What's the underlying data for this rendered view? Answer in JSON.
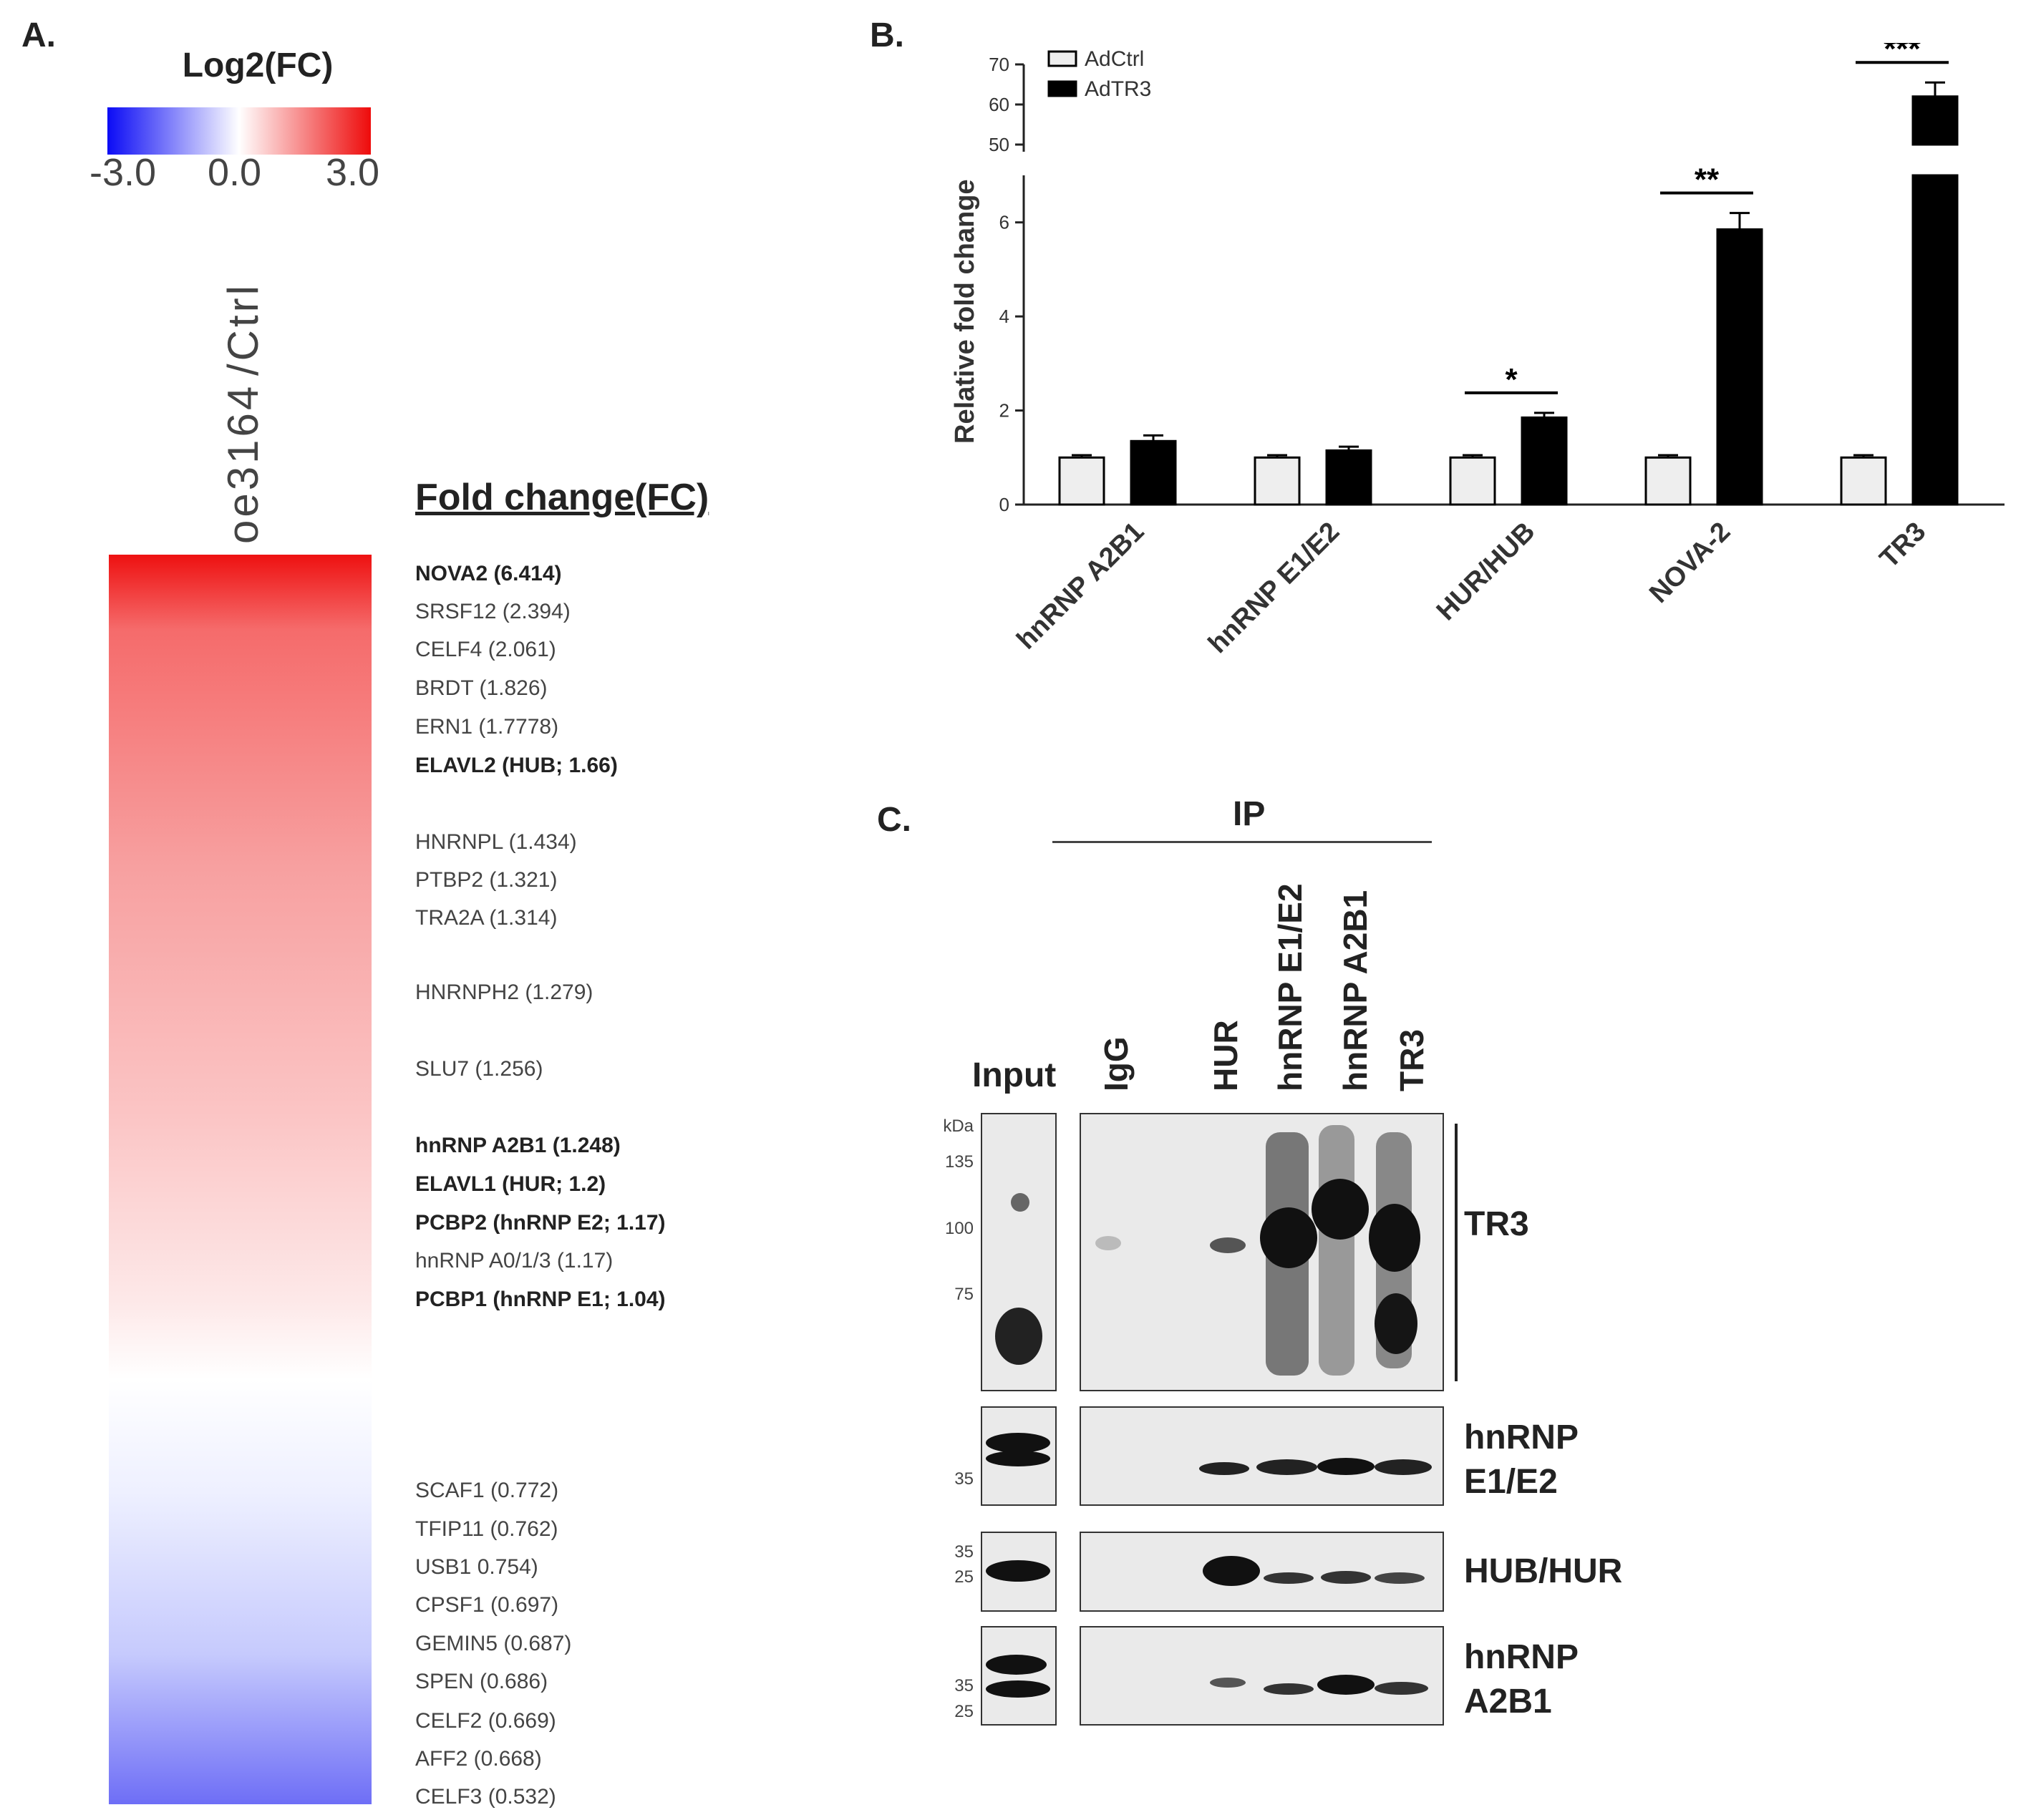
{
  "panel_a": {
    "label": "A.",
    "scale_title": "Log2(FC)",
    "scale_min": "-3.0",
    "scale_mid": "0.0",
    "scale_max": "3.0",
    "column_label_1": "oe3164",
    "column_label_2": "/Ctrl",
    "fc_header": "Fold change(FC)",
    "colors": {
      "low": "#2a2aff",
      "mid": "#ffffff",
      "high": "#ee1111"
    },
    "genes": [
      {
        "text": "NOVA2 (6.414)",
        "bold": true
      },
      {
        "text": "SRSF12 (2.394)",
        "bold": false
      },
      {
        "text": "CELF4 (2.061)",
        "bold": false
      },
      {
        "text": "BRDT (1.826)",
        "bold": false
      },
      {
        "text": "ERN1 (1.7778)",
        "bold": false
      },
      {
        "text": "ELAVL2 (HUB;  1.66)",
        "bold": true
      },
      {
        "text": "HNRNPL (1.434)",
        "bold": false
      },
      {
        "text": "PTBP2 (1.321)",
        "bold": false
      },
      {
        "text": "TRA2A (1.314)",
        "bold": false
      },
      {
        "text": "HNRNPH2 (1.279)",
        "bold": false
      },
      {
        "text": "SLU7 (1.256)",
        "bold": false
      },
      {
        "text": "hnRNP  A2B1 (1.248)",
        "bold": true
      },
      {
        "text": "ELAVL1 (HUR;  1.2)",
        "bold": true
      },
      {
        "text": "PCBP2 (hnRNP  E2;  1.17)",
        "bold": true
      },
      {
        "text": "hnRNP A0/1/3 (1.17)",
        "bold": false
      },
      {
        "text": "PCBP1 (hnRNP  E1;  1.04)",
        "bold": true
      },
      {
        "text": "SCAF1 (0.772)",
        "bold": false
      },
      {
        "text": "TFIP11 (0.762)",
        "bold": false
      },
      {
        "text": "USB1 0.754)",
        "bold": false
      },
      {
        "text": "CPSF1 (0.697)",
        "bold": false
      },
      {
        "text": "GEMIN5 (0.687)",
        "bold": false
      },
      {
        "text": "SPEN (0.686)",
        "bold": false
      },
      {
        "text": "CELF2 (0.669)",
        "bold": false
      },
      {
        "text": "AFF2  (0.668)",
        "bold": false
      },
      {
        "text": "CELF3 (0.532)",
        "bold": false
      }
    ]
  },
  "panel_b": {
    "label": "B.",
    "chart_data": {
      "type": "bar",
      "ylabel": "Relative fold change",
      "categories": [
        "hnRNP A2B1",
        "hnRNP E1/E2",
        "HUR/HUB",
        "NOVA-2",
        "TR3"
      ],
      "series": [
        {
          "name": "AdCtrl",
          "values": [
            1.0,
            1.0,
            1.0,
            1.0,
            1.0
          ],
          "errors": [
            0.05,
            0.05,
            0.05,
            0.05,
            0.05
          ],
          "color": "#eeeeee"
        },
        {
          "name": "AdTR3",
          "values": [
            1.35,
            1.15,
            1.85,
            5.85,
            62
          ],
          "errors": [
            0.12,
            0.08,
            0.1,
            0.35,
            3.5
          ],
          "color": "#000000"
        }
      ],
      "axis_break": {
        "lower": [
          0,
          7
        ],
        "upper": [
          50,
          70
        ]
      },
      "lower_ticks": [
        "0",
        "2",
        "4",
        "6"
      ],
      "upper_ticks": [
        "50",
        "60",
        "70"
      ],
      "significance": [
        "",
        "",
        "*",
        "**",
        "***"
      ],
      "legend_position": "top-left"
    }
  },
  "panel_c": {
    "label": "C.",
    "ip_label": "IP",
    "input_label": "Input",
    "lanes": [
      "IgG",
      "HUR",
      "hnRNP E1/E2",
      "hnRNP A2B1",
      "TR3"
    ],
    "mw_unit": "kDa",
    "mw_main": [
      "135",
      "100",
      "75"
    ],
    "blots": [
      {
        "label_lines": [
          "TR3"
        ],
        "mw": []
      },
      {
        "label_lines": [
          "hnRNP",
          "E1/E2"
        ],
        "mw": [
          "35"
        ]
      },
      {
        "label_lines": [
          "HUB/HUR"
        ],
        "mw": [
          "35",
          "25"
        ]
      },
      {
        "label_lines": [
          "hnRNP",
          "A2B1"
        ],
        "mw": [
          "35",
          "25"
        ]
      }
    ]
  }
}
